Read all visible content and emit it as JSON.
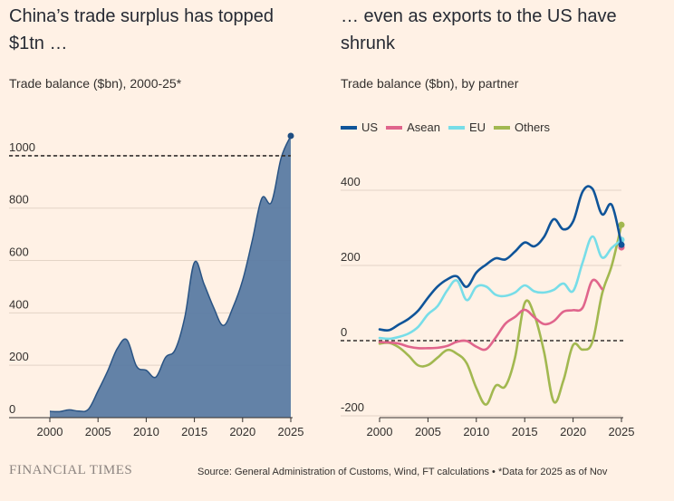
{
  "chart_data": [
    {
      "type": "area",
      "title": "China’s trade surplus has topped $1tn …",
      "subtitle": "Trade balance ($bn), 2000-25*",
      "x_ticks": [
        "2000",
        "2005",
        "2010",
        "2015",
        "2020",
        "2025"
      ],
      "y_ticks": [
        "0",
        "200",
        "400",
        "600",
        "800",
        "1000"
      ],
      "xlim": [
        2000,
        2025
      ],
      "ylim": [
        0,
        1100
      ],
      "reference_line": 1000,
      "series": [
        {
          "name": "Trade balance",
          "color": "#5b7ba3",
          "x": [
            2000,
            2001,
            2002,
            2003,
            2004,
            2005,
            2006,
            2007,
            2008,
            2009,
            2010,
            2011,
            2012,
            2013,
            2014,
            2015,
            2016,
            2017,
            2018,
            2019,
            2020,
            2021,
            2022,
            2023,
            2024,
            2025
          ],
          "values": [
            24,
            23,
            30,
            25,
            32,
            102,
            178,
            264,
            297,
            196,
            181,
            155,
            230,
            259,
            383,
            593,
            510,
            420,
            352,
            421,
            524,
            676,
            838,
            823,
            992,
            1076
          ]
        }
      ]
    },
    {
      "type": "line",
      "title": "… even as exports to the US have shrunk",
      "subtitle": "Trade balance ($bn), by partner",
      "x_ticks": [
        "2000",
        "2005",
        "2010",
        "2015",
        "2020",
        "2025"
      ],
      "y_ticks": [
        "-200",
        "0",
        "200",
        "400"
      ],
      "xlim": [
        2000,
        2025
      ],
      "ylim": [
        -200,
        400
      ],
      "x": [
        2000,
        2001,
        2002,
        2003,
        2004,
        2005,
        2006,
        2007,
        2008,
        2009,
        2010,
        2011,
        2012,
        2013,
        2014,
        2015,
        2016,
        2017,
        2018,
        2019,
        2020,
        2021,
        2022,
        2023,
        2024,
        2025
      ],
      "series": [
        {
          "name": "US",
          "color": "#0f5499",
          "values": [
            30,
            28,
            43,
            58,
            80,
            114,
            144,
            163,
            171,
            143,
            181,
            202,
            219,
            216,
            237,
            261,
            251,
            276,
            323,
            296,
            317,
            397,
            404,
            336,
            361,
            255
          ]
        },
        {
          "name": "Asean",
          "color": "#e0658c",
          "values": [
            -4,
            -5,
            -8,
            -16,
            -20,
            -20,
            -19,
            -14,
            -3,
            -1,
            -16,
            -23,
            8,
            45,
            63,
            82,
            62,
            44,
            52,
            77,
            81,
            88,
            160,
            137,
            null,
            248
          ]
        },
        {
          "name": "EU",
          "color": "#77dde8",
          "values": [
            7,
            5,
            10,
            19,
            37,
            70,
            92,
            134,
            160,
            108,
            143,
            144,
            122,
            119,
            128,
            147,
            131,
            128,
            135,
            152,
            132,
            209,
            277,
            221,
            247,
            268
          ]
        },
        {
          "name": "Others",
          "color": "#a2b850",
          "values": [
            -8,
            -6,
            -18,
            -40,
            -66,
            -65,
            -45,
            -25,
            -35,
            -60,
            -126,
            -170,
            -120,
            -121,
            -45,
            100,
            68,
            -30,
            -162,
            -106,
            -12,
            -24,
            -3,
            125,
            200,
            308
          ]
        }
      ]
    }
  ],
  "legend": [
    {
      "name": "US",
      "color": "#0f5499"
    },
    {
      "name": "Asean",
      "color": "#e0658c"
    },
    {
      "name": "EU",
      "color": "#77dde8"
    },
    {
      "name": "Others",
      "color": "#a2b850"
    }
  ],
  "footer": {
    "brand": "FINANCIAL TIMES",
    "source": "Source: General Administration of Customs, Wind, FT calculations • *Data for 2025 as of Nov"
  }
}
